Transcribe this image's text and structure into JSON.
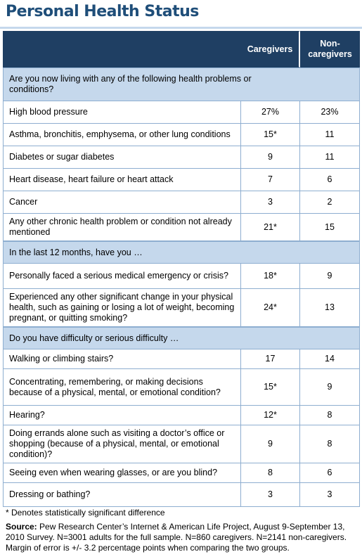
{
  "title": "Personal Health Status",
  "columns": {
    "caregivers": "Caregivers",
    "noncaregivers_line1": "Non-",
    "noncaregivers_line2": "caregivers"
  },
  "sections": [
    {
      "heading": "Are you now living with any of the following health problems or conditions?",
      "rows": [
        {
          "label": "High blood pressure",
          "caregivers": "27%",
          "noncaregivers": "23%"
        },
        {
          "label": "Asthma, bronchitis, emphysema, or other lung conditions",
          "caregivers": "15*",
          "noncaregivers": "11"
        },
        {
          "label": "Diabetes or sugar diabetes",
          "caregivers": "9",
          "noncaregivers": "11"
        },
        {
          "label": "Heart disease, heart failure or heart attack",
          "caregivers": "7",
          "noncaregivers": "6"
        },
        {
          "label": "Cancer",
          "caregivers": "3",
          "noncaregivers": "2"
        },
        {
          "label": "Any other chronic health problem or condition not already mentioned",
          "caregivers": "21*",
          "noncaregivers": "15"
        }
      ]
    },
    {
      "heading": "In the last 12 months, have you …",
      "rows": [
        {
          "label": "Personally faced a serious medical emergency or crisis?",
          "caregivers": "18*",
          "noncaregivers": "9"
        },
        {
          "label": "Experienced any other significant change in your physical health, such as gaining or losing a lot of weight, becoming pregnant, or quitting smoking?",
          "caregivers": "24*",
          "noncaregivers": "13"
        }
      ]
    },
    {
      "heading": "Do you have difficulty or serious difficulty …",
      "rows": [
        {
          "label": "Walking or climbing stairs?",
          "caregivers": "17",
          "noncaregivers": "14"
        },
        {
          "label": "Concentrating, remembering, or making decisions because of a physical, mental, or emotional condition?",
          "caregivers": "15*",
          "noncaregivers": "9"
        },
        {
          "label": "Hearing?",
          "caregivers": "12*",
          "noncaregivers": "8"
        },
        {
          "label": "Doing errands alone such as visiting a doctor’s office or shopping (because of a physical, mental, or emotional condition)?",
          "caregivers": "9",
          "noncaregivers": "8"
        },
        {
          "label": "Seeing even when wearing glasses, or are you blind?",
          "caregivers": "8",
          "noncaregivers": "6"
        },
        {
          "label": "Dressing or bathing?",
          "caregivers": "3",
          "noncaregivers": "3"
        }
      ]
    }
  ],
  "footnote": "* Denotes statistically significant difference",
  "source_label": "Source:",
  "source_text": " Pew Research Center’s Internet & American Life Project, August 9-September 13, 2010 Survey. N=3001 adults for the full sample. N=860 caregivers. N=2141 non-caregivers. Margin of error is +/- 3.2 percentage points when comparing the two groups."
}
